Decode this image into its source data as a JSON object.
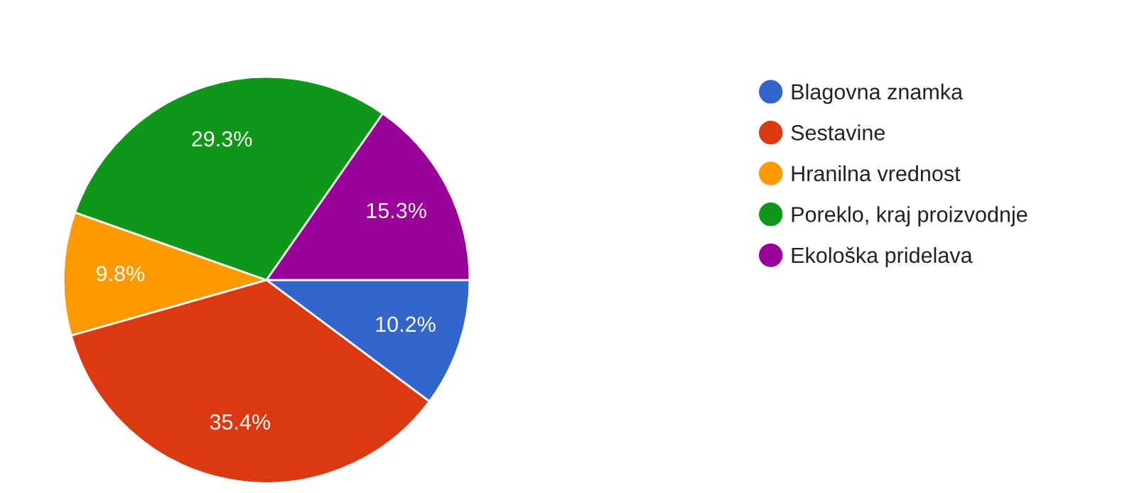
{
  "chart_data": {
    "type": "pie",
    "categories": [
      "Blagovna znamka",
      "Sestavine",
      "Hranilna vrednost",
      "Poreklo, kraj proizvodnje",
      "Ekološka pridelava"
    ],
    "values": [
      10.2,
      35.4,
      9.8,
      29.3,
      15.3
    ],
    "colors": [
      "#3366cc",
      "#dc3912",
      "#ff9900",
      "#109618",
      "#990099"
    ],
    "value_labels": [
      "10.2%",
      "35.4%",
      "9.8%",
      "29.3%",
      "15.3%"
    ],
    "legend": "right"
  }
}
